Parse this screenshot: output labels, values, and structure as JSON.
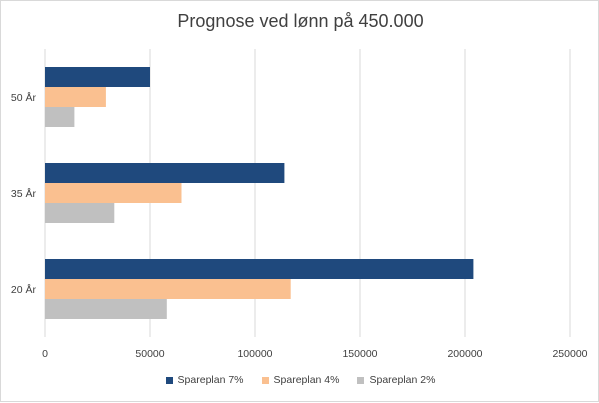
{
  "chart_data": {
    "type": "bar",
    "orientation": "horizontal",
    "title": "Prognose ved lønn på 450.000",
    "xlabel": "",
    "ylabel": "",
    "categories": [
      "50 År",
      "35 År",
      "20 År"
    ],
    "xlim": [
      0,
      250000
    ],
    "xticks": [
      0,
      50000,
      100000,
      150000,
      200000,
      250000
    ],
    "xtick_labels": [
      "0",
      "50000",
      "100000",
      "150000",
      "200000",
      "250000"
    ],
    "grid": true,
    "legend_position": "bottom",
    "series": [
      {
        "name": "Spareplan 7%",
        "color": "#1f497d",
        "values": [
          50000,
          114000,
          204000
        ]
      },
      {
        "name": "Spareplan 4%",
        "color": "#fac090",
        "values": [
          29000,
          65000,
          117000
        ]
      },
      {
        "name": "Spareplan 2%",
        "color": "#c0c0c0",
        "values": [
          14000,
          33000,
          58000
        ]
      }
    ]
  }
}
